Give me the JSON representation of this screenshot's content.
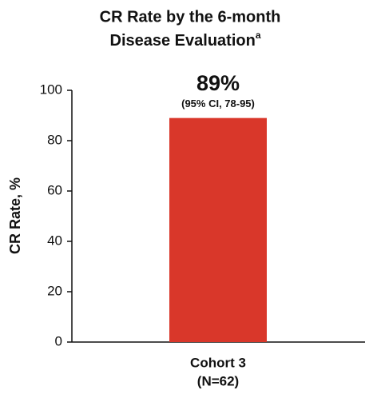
{
  "chart_data": {
    "type": "bar",
    "title": [
      "CR Rate by the 6-month",
      "Disease Evaluation"
    ],
    "title_superscript": "a",
    "y_label": "CR Rate, %",
    "categories": [
      "Cohort 3"
    ],
    "category_notes": [
      "(N=62)"
    ],
    "values": [
      89
    ],
    "value_labels": [
      "89%"
    ],
    "annotations": [
      "(95% CI, 78-95)"
    ],
    "color": "#d9372a",
    "ylim": [
      0,
      100
    ],
    "yticks": [
      0,
      20,
      40,
      60,
      80,
      100
    ],
    "grid": false
  }
}
